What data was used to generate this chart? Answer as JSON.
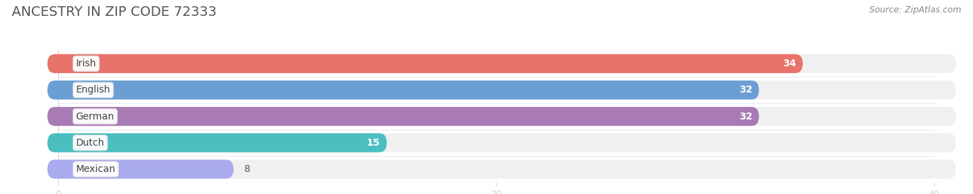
{
  "title": "ANCESTRY IN ZIP CODE 72333",
  "source": "Source: ZipAtlas.com",
  "categories": [
    "Irish",
    "English",
    "German",
    "Dutch",
    "Mexican"
  ],
  "values": [
    34,
    32,
    32,
    15,
    8
  ],
  "bar_colors": [
    "#E8736A",
    "#6B9FD4",
    "#A97BB5",
    "#4BBFC0",
    "#AAAAEE"
  ],
  "xlim": [
    0,
    40
  ],
  "xticks": [
    0,
    20,
    40
  ],
  "background_color": "#FFFFFF",
  "row_bg_color": "#F0F0F0",
  "title_fontsize": 14,
  "source_fontsize": 9,
  "label_fontsize": 10,
  "value_fontsize": 10
}
